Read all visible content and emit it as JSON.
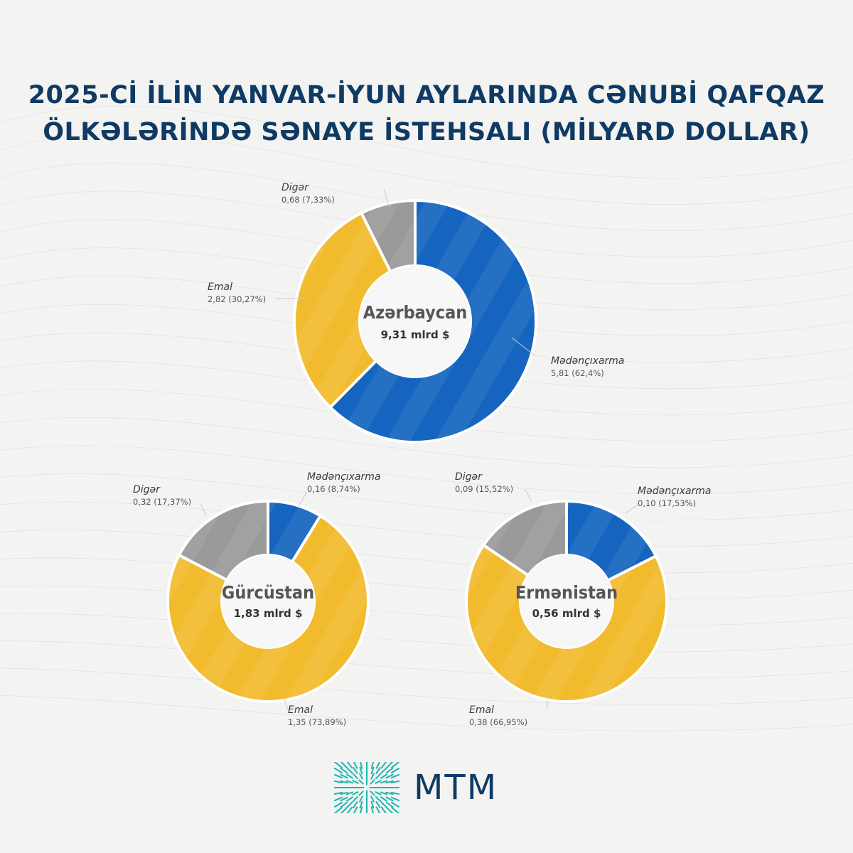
{
  "title": {
    "line1": "2025-Cİ İLİN YANVAR-İYUN AYLARINDA CƏNUBİ QAFQAZ",
    "line2": "ÖLKƏLƏRİNDƏ SƏNAYE İSTEHSALI (MİLYARD DOLLAR)"
  },
  "logo": {
    "text": "MTM",
    "icon": "mtm-logo-icon"
  },
  "colors": {
    "mining": "#1565c0",
    "manufacturing": "#f2bb2e",
    "other": "#9a9a9a",
    "title": "#0f3a63"
  },
  "chart_data": [
    {
      "type": "pie",
      "country": "Azərbaycan",
      "total_label": "9,31 mlrd $",
      "slices": [
        {
          "name": "Mədənçıxarma",
          "value": 5.81,
          "value_label": "5,81 (62,4%)",
          "percent": 62.4,
          "color": "#1565c0"
        },
        {
          "name": "Emal",
          "value": 2.82,
          "value_label": "2,82 (30,27%)",
          "percent": 30.27,
          "color": "#f2bb2e"
        },
        {
          "name": "Digər",
          "value": 0.68,
          "value_label": "0,68 (7,33%)",
          "percent": 7.33,
          "color": "#9a9a9a"
        }
      ]
    },
    {
      "type": "pie",
      "country": "Gürcüstan",
      "total_label": "1,83 mlrd $",
      "slices": [
        {
          "name": "Mədənçıxarma",
          "value": 0.16,
          "value_label": "0,16 (8,74%)",
          "percent": 8.74,
          "color": "#1565c0"
        },
        {
          "name": "Emal",
          "value": 1.35,
          "value_label": "1,35 (73,89%)",
          "percent": 73.89,
          "color": "#f2bb2e"
        },
        {
          "name": "Digər",
          "value": 0.32,
          "value_label": "0,32 (17,37%)",
          "percent": 17.37,
          "color": "#9a9a9a"
        }
      ]
    },
    {
      "type": "pie",
      "country": "Ermənistan",
      "total_label": "0,56 mlrd $",
      "slices": [
        {
          "name": "Mədənçıxarma",
          "value": 0.1,
          "value_label": "0,10 (17,53%)",
          "percent": 17.53,
          "color": "#1565c0"
        },
        {
          "name": "Emal",
          "value": 0.38,
          "value_label": "0,38 (66,95%)",
          "percent": 66.95,
          "color": "#f2bb2e"
        },
        {
          "name": "Digər",
          "value": 0.09,
          "value_label": "0,09 (15,52%)",
          "percent": 15.52,
          "color": "#9a9a9a"
        }
      ]
    }
  ]
}
